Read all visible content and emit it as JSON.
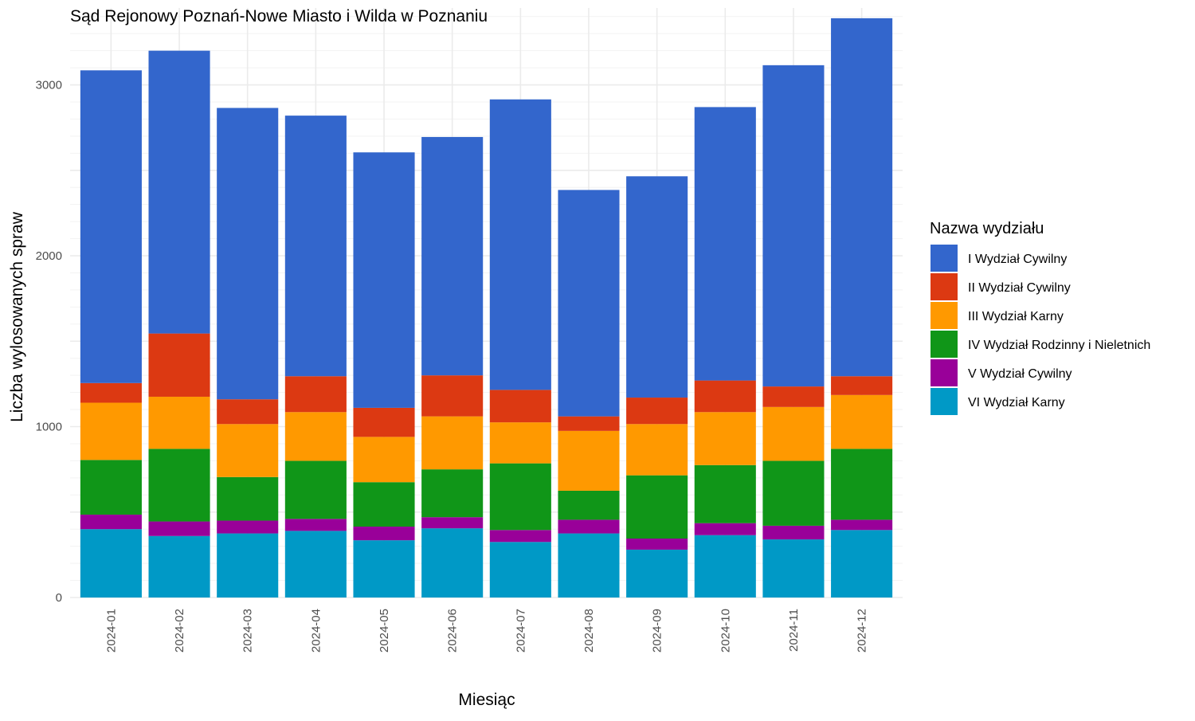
{
  "chart_data": {
    "type": "bar",
    "stacked": true,
    "title": "Sąd Rejonowy Poznań-Nowe Miasto i Wilda w Poznaniu",
    "xlabel": "Miesiąc",
    "ylabel": "Liczba wylosowanych spraw",
    "ylim": [
      0,
      3450
    ],
    "yticks": [
      0,
      1000,
      2000,
      3000
    ],
    "grid": true,
    "legend_title": "Nazwa wydziału",
    "legend_position": "right",
    "categories": [
      "2024-01",
      "2024-02",
      "2024-03",
      "2024-04",
      "2024-05",
      "2024-06",
      "2024-07",
      "2024-08",
      "2024-09",
      "2024-10",
      "2024-11",
      "2024-12"
    ],
    "series": [
      {
        "name": "VI Wydział Karny",
        "color": "#0099C6",
        "values": [
          400,
          360,
          375,
          390,
          335,
          405,
          325,
          375,
          280,
          365,
          340,
          395
        ]
      },
      {
        "name": "V Wydział Cywilny",
        "color": "#990099",
        "values": [
          85,
          85,
          75,
          70,
          80,
          65,
          70,
          80,
          65,
          70,
          80,
          60
        ]
      },
      {
        "name": "IV Wydział Rodzinny i Nieletnich",
        "color": "#109618",
        "values": [
          320,
          425,
          255,
          340,
          260,
          280,
          390,
          170,
          370,
          340,
          380,
          415
        ]
      },
      {
        "name": "III Wydział Karny",
        "color": "#FF9900",
        "values": [
          335,
          305,
          310,
          285,
          265,
          310,
          240,
          350,
          300,
          310,
          315,
          315
        ]
      },
      {
        "name": "II Wydział Cywilny",
        "color": "#DC3912",
        "values": [
          115,
          370,
          145,
          210,
          170,
          240,
          190,
          85,
          155,
          185,
          120,
          110
        ]
      },
      {
        "name": "I Wydział Cywilny",
        "color": "#3366CC",
        "values": [
          1830,
          1655,
          1705,
          1525,
          1495,
          1395,
          1700,
          1325,
          1295,
          1600,
          1880,
          2095
        ]
      }
    ],
    "legend_order": [
      "I Wydział Cywilny",
      "II Wydział Cywilny",
      "III Wydział Karny",
      "IV Wydział Rodzinny i Nieletnich",
      "V Wydział Cywilny",
      "VI Wydział Karny"
    ]
  }
}
